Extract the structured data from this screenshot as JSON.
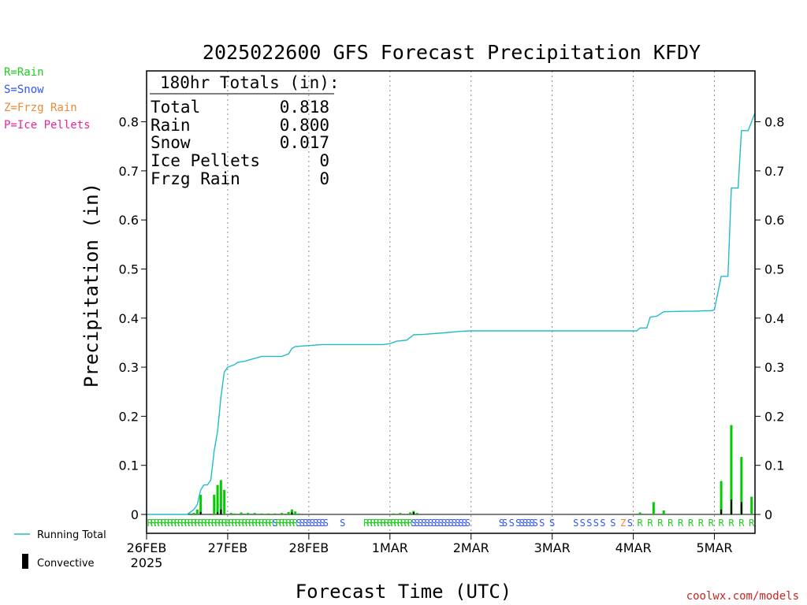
{
  "title": "2025022600 GFS Forecast Precipitation KFDY",
  "left_legend": [
    {
      "label": "R=Rain",
      "color": "#22cc22"
    },
    {
      "label": "S=Snow",
      "color": "#3355ee"
    },
    {
      "label": "Z=Frzg Rain",
      "color": "#ee8833"
    },
    {
      "label": "P=Ice Pellets",
      "color": "#ee2299"
    }
  ],
  "totals": {
    "heading": "180hr Totals (in):",
    "rows": [
      {
        "label": "Total",
        "value": "0.818"
      },
      {
        "label": "Rain",
        "value": "0.800"
      },
      {
        "label": "Snow",
        "value": "0.017"
      },
      {
        "label": "Ice Pellets",
        "value": "0"
      },
      {
        "label": "Frzg Rain",
        "value": "0"
      }
    ]
  },
  "bottom_legend": {
    "running_total": "Running Total",
    "convective": "Convective"
  },
  "watermark": "coolwx.com/models",
  "colors": {
    "running_total": "#22bbcc",
    "bar": "#00cc00",
    "convective": "#000000",
    "rain": "#22cc22",
    "snow": "#3355ee",
    "frzg": "#ee8833"
  },
  "chart_data": {
    "type": "bar",
    "xlabel": "Forecast Time (UTC)",
    "ylabel": "Precipitation (in)",
    "ylim": [
      -0.01,
      0.9
    ],
    "xlim_hours": [
      0,
      180
    ],
    "yticks": [
      0,
      0.1,
      0.2,
      0.3,
      0.4,
      0.5,
      0.6,
      0.7,
      0.8
    ],
    "ytick_labels": [
      "0",
      "0.1",
      "0.2",
      "0.3",
      "0.4",
      "0.5",
      "0.6",
      "0.7",
      "0.8"
    ],
    "xticks": [
      {
        "hour": 0,
        "label": "26FEB",
        "sublabel": "2025"
      },
      {
        "hour": 24,
        "label": "27FEB"
      },
      {
        "hour": 48,
        "label": "28FEB"
      },
      {
        "hour": 72,
        "label": "1MAR"
      },
      {
        "hour": 96,
        "label": "2MAR"
      },
      {
        "hour": 120,
        "label": "3MAR"
      },
      {
        "hour": 144,
        "label": "4MAR"
      },
      {
        "hour": 168,
        "label": "5MAR"
      }
    ],
    "grid": "vertical dotted",
    "running_total": [
      [
        0,
        0
      ],
      [
        12,
        0
      ],
      [
        14,
        0.01
      ],
      [
        15,
        0.02
      ],
      [
        16,
        0.05
      ],
      [
        17,
        0.06
      ],
      [
        18,
        0.06
      ],
      [
        19,
        0.07
      ],
      [
        20,
        0.13
      ],
      [
        21,
        0.17
      ],
      [
        22,
        0.24
      ],
      [
        23,
        0.29
      ],
      [
        24,
        0.3
      ],
      [
        26,
        0.305
      ],
      [
        27,
        0.31
      ],
      [
        29,
        0.312
      ],
      [
        34,
        0.322
      ],
      [
        40,
        0.322
      ],
      [
        42,
        0.327
      ],
      [
        43,
        0.338
      ],
      [
        44,
        0.342
      ],
      [
        48,
        0.344
      ],
      [
        52,
        0.346
      ],
      [
        70,
        0.346
      ],
      [
        72,
        0.348
      ],
      [
        74,
        0.353
      ],
      [
        77,
        0.355
      ],
      [
        79,
        0.366
      ],
      [
        82,
        0.367
      ],
      [
        88,
        0.37
      ],
      [
        93,
        0.373
      ],
      [
        96,
        0.374
      ],
      [
        120,
        0.374
      ],
      [
        141,
        0.374
      ],
      [
        145,
        0.374
      ],
      [
        146,
        0.38
      ],
      [
        148,
        0.38
      ],
      [
        149,
        0.402
      ],
      [
        151,
        0.404
      ],
      [
        153,
        0.413
      ],
      [
        160,
        0.414
      ],
      [
        162,
        0.414
      ],
      [
        165,
        0.415
      ],
      [
        167,
        0.415
      ],
      [
        168,
        0.417
      ],
      [
        170,
        0.485
      ],
      [
        172,
        0.485
      ],
      [
        173,
        0.665
      ],
      [
        175,
        0.665
      ],
      [
        176,
        0.782
      ],
      [
        178,
        0.782
      ],
      [
        180,
        0.818
      ]
    ],
    "precip_bars": [
      [
        13,
        0.002
      ],
      [
        14,
        0.003
      ],
      [
        15,
        0.01
      ],
      [
        16,
        0.04
      ],
      [
        20,
        0.04
      ],
      [
        21,
        0.06
      ],
      [
        22,
        0.07
      ],
      [
        23,
        0.05
      ],
      [
        25,
        0.003
      ],
      [
        26,
        0.002
      ],
      [
        28,
        0.004
      ],
      [
        30,
        0.003
      ],
      [
        32,
        0.003
      ],
      [
        34,
        0.002
      ],
      [
        36,
        0.002
      ],
      [
        38,
        0.002
      ],
      [
        40,
        0.003
      ],
      [
        42,
        0.005
      ],
      [
        43,
        0.01
      ],
      [
        44,
        0.006
      ],
      [
        45,
        0.002
      ],
      [
        73,
        0.002
      ],
      [
        75,
        0.003
      ],
      [
        78,
        0.004
      ],
      [
        79,
        0.007
      ],
      [
        80,
        0.003
      ],
      [
        146,
        0.004
      ],
      [
        150,
        0.025
      ],
      [
        153,
        0.008
      ],
      [
        170,
        0.068
      ],
      [
        173,
        0.182
      ],
      [
        176,
        0.117
      ],
      [
        179,
        0.036
      ]
    ],
    "convective_bars": [
      [
        16,
        0.005
      ],
      [
        21,
        0.005
      ],
      [
        22,
        0.01
      ],
      [
        43,
        0.004
      ],
      [
        79,
        0.005
      ],
      [
        170,
        0.01
      ],
      [
        173,
        0.03
      ],
      [
        176,
        0.025
      ]
    ],
    "ptype": [
      [
        1,
        "R"
      ],
      [
        2,
        "R"
      ],
      [
        3,
        "R"
      ],
      [
        4,
        "R"
      ],
      [
        5,
        "R"
      ],
      [
        6,
        "R"
      ],
      [
        7,
        "R"
      ],
      [
        8,
        "R"
      ],
      [
        9,
        "R"
      ],
      [
        10,
        "R"
      ],
      [
        11,
        "R"
      ],
      [
        12,
        "R"
      ],
      [
        13,
        "R"
      ],
      [
        14,
        "R"
      ],
      [
        15,
        "R"
      ],
      [
        16,
        "R"
      ],
      [
        17,
        "R"
      ],
      [
        18,
        "R"
      ],
      [
        19,
        "R"
      ],
      [
        20,
        "R"
      ],
      [
        21,
        "R"
      ],
      [
        22,
        "R"
      ],
      [
        23,
        "R"
      ],
      [
        24,
        "R"
      ],
      [
        25,
        "R"
      ],
      [
        26,
        "R"
      ],
      [
        27,
        "R"
      ],
      [
        28,
        "R"
      ],
      [
        29,
        "R"
      ],
      [
        30,
        "R"
      ],
      [
        31,
        "R"
      ],
      [
        32,
        "R"
      ],
      [
        33,
        "R"
      ],
      [
        34,
        "R"
      ],
      [
        35,
        "R"
      ],
      [
        36,
        "R"
      ],
      [
        37,
        "R"
      ],
      [
        38,
        "S"
      ],
      [
        39,
        "R"
      ],
      [
        40,
        "R"
      ],
      [
        41,
        "R"
      ],
      [
        42,
        "R"
      ],
      [
        43,
        "R"
      ],
      [
        44,
        "R"
      ],
      [
        45,
        "S"
      ],
      [
        46,
        "S"
      ],
      [
        47,
        "S"
      ],
      [
        48,
        "S"
      ],
      [
        49,
        "S"
      ],
      [
        50,
        "S"
      ],
      [
        51,
        "S"
      ],
      [
        52,
        "S"
      ],
      [
        53,
        "S"
      ],
      [
        58,
        "S"
      ],
      [
        65,
        "R"
      ],
      [
        66,
        "R"
      ],
      [
        67,
        "R"
      ],
      [
        68,
        "R"
      ],
      [
        69,
        "R"
      ],
      [
        70,
        "R"
      ],
      [
        71,
        "R"
      ],
      [
        72,
        "R"
      ],
      [
        73,
        "R"
      ],
      [
        74,
        "R"
      ],
      [
        75,
        "R"
      ],
      [
        76,
        "R"
      ],
      [
        77,
        "R"
      ],
      [
        78,
        "R"
      ],
      [
        79,
        "S"
      ],
      [
        80,
        "S"
      ],
      [
        81,
        "S"
      ],
      [
        82,
        "S"
      ],
      [
        83,
        "S"
      ],
      [
        84,
        "S"
      ],
      [
        85,
        "S"
      ],
      [
        86,
        "S"
      ],
      [
        87,
        "S"
      ],
      [
        88,
        "S"
      ],
      [
        89,
        "S"
      ],
      [
        90,
        "S"
      ],
      [
        91,
        "S"
      ],
      [
        92,
        "S"
      ],
      [
        93,
        "S"
      ],
      [
        94,
        "S"
      ],
      [
        95,
        "S"
      ],
      [
        105,
        "S"
      ],
      [
        106,
        "S"
      ],
      [
        108,
        "S"
      ],
      [
        110,
        "S"
      ],
      [
        111,
        "S"
      ],
      [
        112,
        "S"
      ],
      [
        113,
        "S"
      ],
      [
        114,
        "S"
      ],
      [
        115,
        "S"
      ],
      [
        117,
        "S"
      ],
      [
        120,
        "S"
      ],
      [
        127,
        "S"
      ],
      [
        129,
        "S"
      ],
      [
        131,
        "S"
      ],
      [
        133,
        "S"
      ],
      [
        135,
        "S"
      ],
      [
        138,
        "S"
      ],
      [
        141,
        "Z"
      ],
      [
        143,
        "S"
      ],
      [
        146,
        "R"
      ],
      [
        149,
        "R"
      ],
      [
        152,
        "R"
      ],
      [
        155,
        "R"
      ],
      [
        158,
        "R"
      ],
      [
        161,
        "R"
      ],
      [
        164,
        "R"
      ],
      [
        167,
        "R"
      ],
      [
        170,
        "R"
      ],
      [
        173,
        "R"
      ],
      [
        176,
        "R"
      ],
      [
        179,
        "R"
      ]
    ]
  }
}
